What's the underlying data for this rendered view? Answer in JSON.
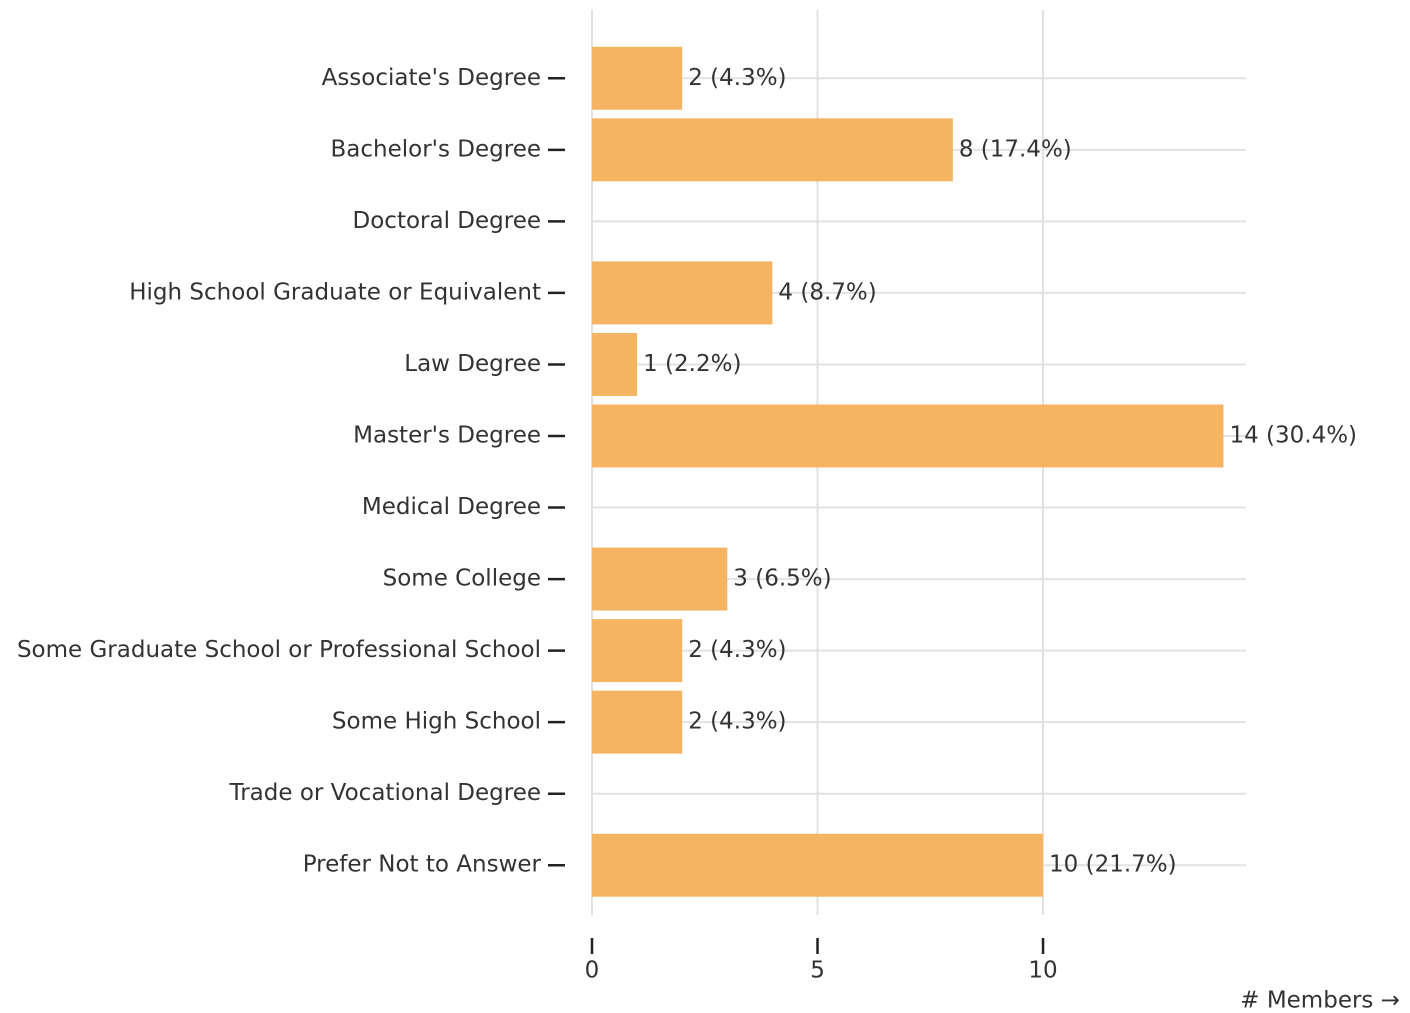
{
  "chart_data": {
    "type": "bar",
    "orientation": "horizontal",
    "categories": [
      "Associate's Degree",
      "Bachelor's Degree",
      "Doctoral Degree",
      "High School Graduate or Equivalent",
      "Law Degree",
      "Master's Degree",
      "Medical Degree",
      "Some College",
      "Some Graduate School or Professional School",
      "Some High School",
      "Trade or Vocational Degree",
      "Prefer Not to Answer"
    ],
    "values": [
      2,
      8,
      0,
      4,
      1,
      14,
      0,
      3,
      2,
      2,
      0,
      10
    ],
    "value_labels": [
      "2 (4.3%)",
      "8 (17.4%)",
      null,
      "4 (8.7%)",
      "1 (2.2%)",
      "14 (30.4%)",
      null,
      "3 (6.5%)",
      "2 (4.3%)",
      "2 (4.3%)",
      null,
      "10 (21.7%)"
    ],
    "color": "#f4b462",
    "xlim": [
      0,
      14.5
    ],
    "xticks": [
      0,
      5,
      10
    ],
    "grid": true,
    "x_label": "# Members →"
  }
}
